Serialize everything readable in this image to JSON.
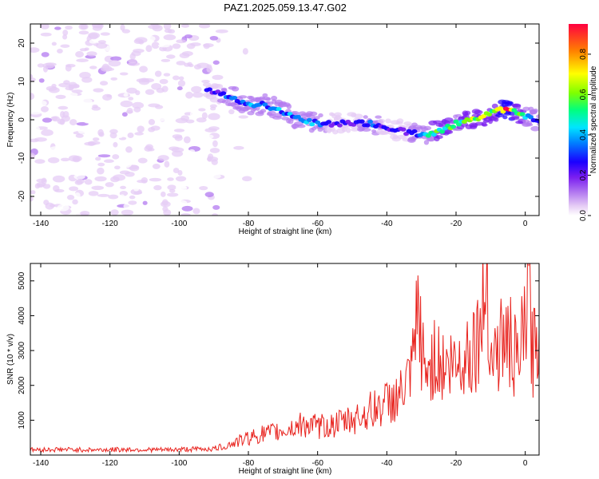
{
  "title": "PAZ1.2025.059.13.47.G02",
  "colors": {
    "background": "#ffffff",
    "axis": "#000000",
    "snr_line": "#e8231e",
    "colormap": [
      "#ffffff",
      "#e6ccf5",
      "#b37af0",
      "#7a1ef0",
      "#1a00ff",
      "#0080ff",
      "#00e5ff",
      "#00ff7f",
      "#7fff00",
      "#ffff00",
      "#ff8000",
      "#ff0040"
    ]
  },
  "chart_data": [
    {
      "type": "heatmap",
      "title": "PAZ1.2025.059.13.47.G02",
      "xlabel": "Height of straight line (km)",
      "ylabel": "Frequency (Hz)",
      "xlim": [
        -143,
        4
      ],
      "ylim": [
        -25,
        25
      ],
      "x_ticks": [
        -140,
        -120,
        -100,
        -80,
        -60,
        -40,
        -20,
        0
      ],
      "y_ticks": [
        20,
        10,
        0,
        -10,
        -20
      ],
      "colorbar": {
        "label": "Normalized spectral amplitude",
        "range": [
          0,
          0.95
        ],
        "ticks": [
          0.0,
          0.2,
          0.4,
          0.6,
          0.8
        ]
      },
      "ridge": {
        "x": [
          -140,
          -130,
          -120,
          -110,
          -100,
          -90,
          -85,
          -80,
          -75,
          -70,
          -65,
          -60,
          -55,
          -50,
          -45,
          -40,
          -35,
          -30,
          -25,
          -20,
          -15,
          -10,
          -5,
          0,
          3
        ],
        "frequency": [
          -1,
          3,
          7,
          11,
          13,
          7,
          6,
          4,
          4,
          2,
          0,
          -1,
          -1,
          -1,
          -1,
          -2,
          -3,
          -4,
          -3,
          -1,
          0,
          2,
          3,
          1,
          0
        ],
        "amplitude": [
          0.05,
          0.06,
          0.07,
          0.07,
          0.06,
          0.35,
          0.4,
          0.5,
          0.45,
          0.45,
          0.5,
          0.45,
          0.3,
          0.35,
          0.4,
          0.35,
          0.3,
          0.5,
          0.7,
          0.6,
          0.7,
          0.8,
          0.95,
          0.6,
          0.4
        ]
      }
    },
    {
      "type": "line",
      "xlabel": "Height of straight line (km)",
      "ylabel": "SNR (10 * v/v)",
      "xlim": [
        -143,
        4
      ],
      "ylim": [
        0,
        5500
      ],
      "x_ticks": [
        -140,
        -120,
        -100,
        -80,
        -60,
        -40,
        -20,
        0
      ],
      "y_ticks": [
        1000,
        2000,
        3000,
        4000,
        5000
      ],
      "series": [
        {
          "x": [
            -143,
            -135,
            -125,
            -115,
            -105,
            -95,
            -90,
            -87,
            -84,
            -80,
            -76,
            -72,
            -68,
            -64,
            -60,
            -56,
            -52,
            -48,
            -44,
            -40,
            -36,
            -33,
            -31,
            -29,
            -26,
            -23,
            -20,
            -17,
            -14,
            -12,
            -11,
            -10,
            -8,
            -6,
            -4,
            -2,
            0,
            1,
            2,
            3,
            4
          ],
          "y": [
            150,
            160,
            150,
            160,
            150,
            170,
            180,
            250,
            350,
            500,
            600,
            650,
            750,
            900,
            800,
            850,
            950,
            1100,
            1300,
            1500,
            1700,
            2200,
            4000,
            2300,
            2800,
            2500,
            2600,
            2900,
            3300,
            4200,
            5500,
            2800,
            3000,
            3400,
            3100,
            2500,
            3800,
            5000,
            2900,
            3200,
            3600
          ]
        }
      ]
    }
  ]
}
